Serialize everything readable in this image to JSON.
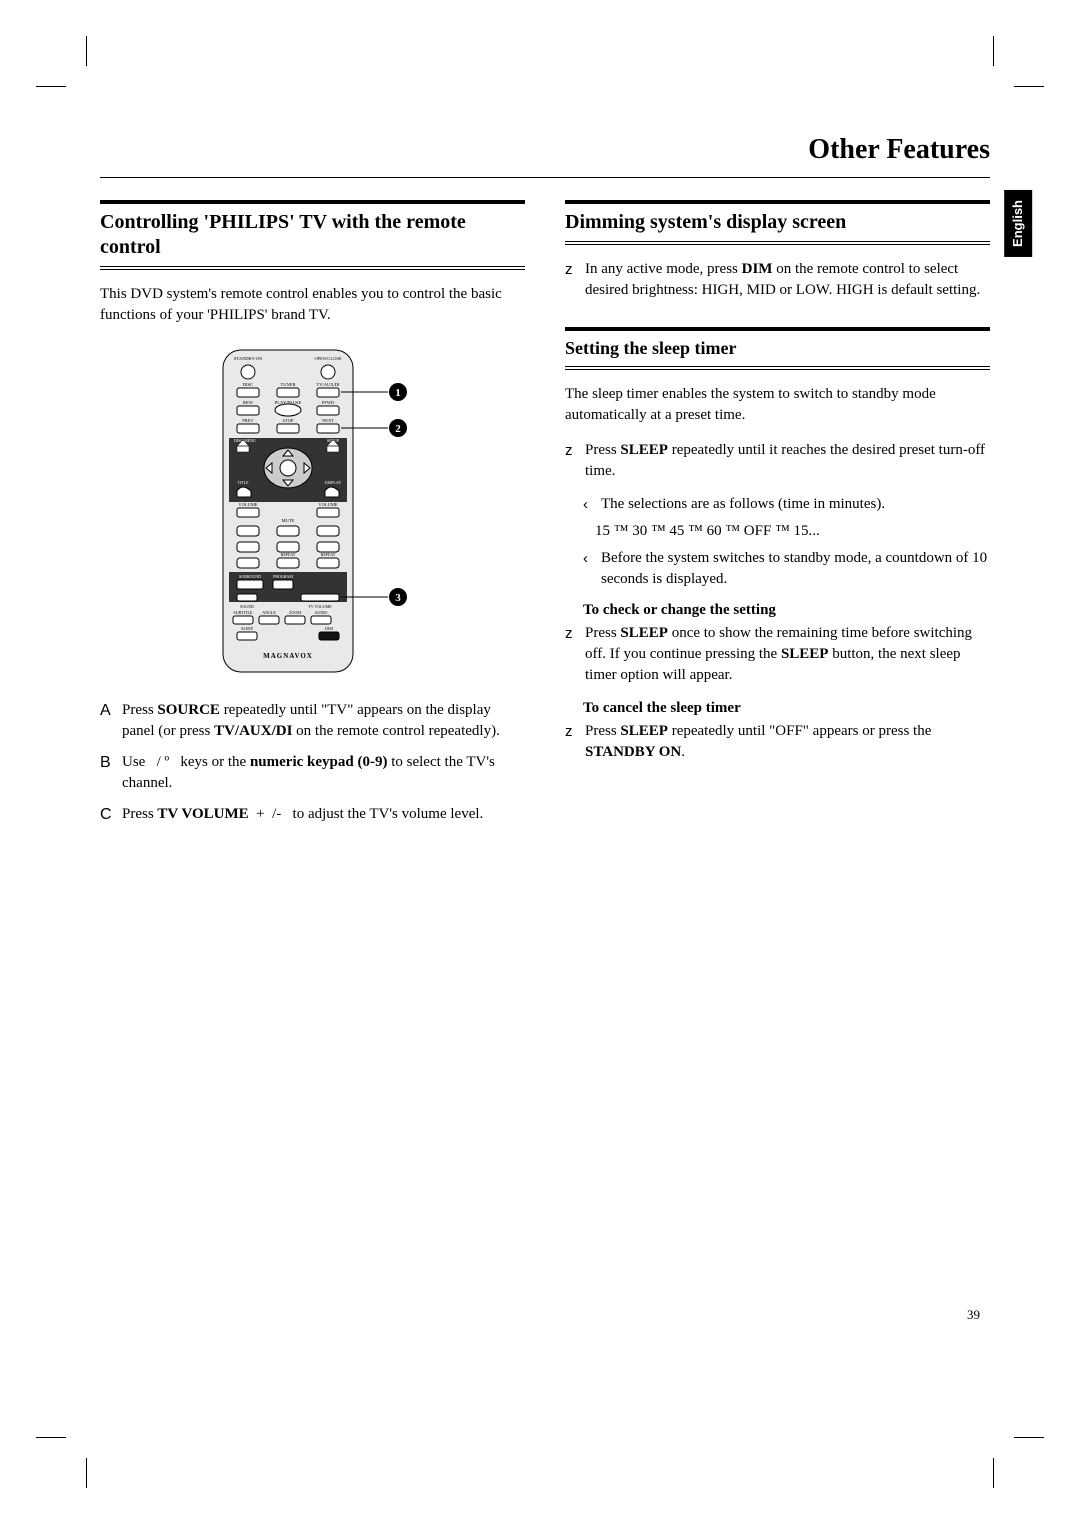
{
  "page": {
    "title": "Other Features",
    "number": "39",
    "language_tab": "English"
  },
  "left": {
    "heading": "Controlling 'PHILIPS' TV with the remote control",
    "intro": "This DVD system's remote control enables you to control the basic functions of your 'PHILIPS' brand TV.",
    "remote": {
      "brand": "MAGNAVOX",
      "callouts": [
        "1",
        "2",
        "3"
      ],
      "labels": {
        "standby": "STANDBY-ON",
        "openclose": "OPEN/CLOSE",
        "disc": "DISC",
        "tuner": "TUNER",
        "tvaux": "TV/AUX/DI",
        "rew": "REW",
        "playpause": "PLAY/PAUSE",
        "ffwd": "FFWD",
        "prev": "PREV",
        "stop": "STOP",
        "next": "NEXT",
        "discmenu": "DISC MENU",
        "setup": "SETUP",
        "title": "TITLE",
        "display": "DISPLAY",
        "volume": "VOLUME",
        "mute": "MUTE",
        "repeat": "REPEAT",
        "surround": "SURROUND",
        "program": "PROGRAM",
        "sound": "SOUND",
        "tvvol": "TV VOLUME",
        "subtitle": "SUBTITLE",
        "angle": "ANGLE",
        "zoom": "ZOOM",
        "audio": "AUDIO",
        "sleep": "SLEEP",
        "dim": "DIM"
      }
    },
    "steps": [
      {
        "letter": "A",
        "html": "Press <b>SOURCE</b> repeatedly until \"TV\" appears on the display panel (or press <b>TV/AUX/DI</b> on the remote control repeatedly)."
      },
      {
        "letter": "B",
        "html": "Use &nbsp;&nbsp;/ º&nbsp;&nbsp; keys or the <b>numeric keypad (0-9)</b> to select the TV's channel."
      },
      {
        "letter": "C",
        "html": "Press <b>TV VOLUME</b> &nbsp;+&nbsp; /- &nbsp;&nbsp;to adjust the TV's volume level."
      }
    ]
  },
  "right": {
    "dim": {
      "heading": "Dimming system's display screen",
      "item_html": "In any active mode, press <b>DIM</b> on the remote control to select desired brightness: HIGH, MID or LOW. HIGH is default setting."
    },
    "sleep": {
      "heading": "Setting the sleep timer",
      "intro": "The sleep timer enables the system to switch to standby mode automatically at a preset time.",
      "item_html": "Press <b>SLEEP</b> repeatedly until it reaches the desired preset turn-off time.",
      "sub1": "The selections are as follows (time in minutes).",
      "sequence": "15 ™ 30 ™ 45 ™ 60 ™ OFF ™ 15...",
      "sub2": "Before the system switches to standby mode, a countdown of 10 seconds is displayed.",
      "check_head": "To check or change the setting",
      "check_html": "Press <b>SLEEP</b> once to show the remaining time before switching off.  If you continue pressing the <b>SLEEP</b> button, the next sleep timer option will appear.",
      "cancel_head": "To cancel the sleep timer",
      "cancel_html": "Press <b>SLEEP</b> repeatedly until \"OFF\" appears or press the <b>STANDBY ON</b>."
    }
  }
}
